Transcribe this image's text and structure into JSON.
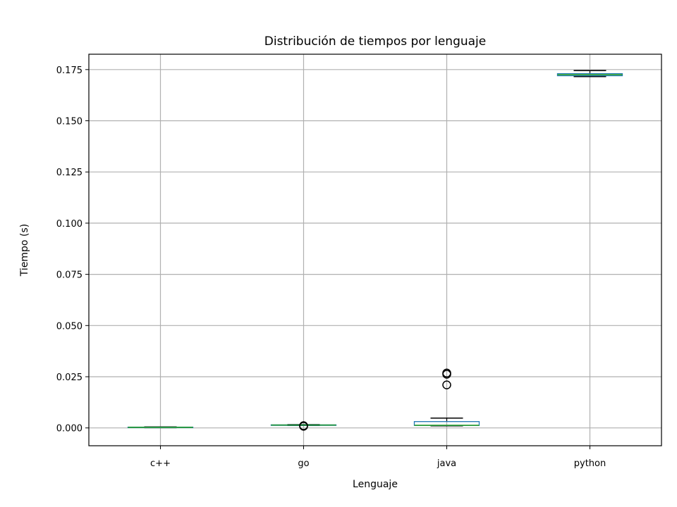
{
  "chart_data": {
    "type": "box",
    "title": "Distribución de tiempos por lenguaje",
    "xlabel": "Lenguaje",
    "ylabel": "Tiempo (s)",
    "ylim": [
      -0.0087,
      0.1825
    ],
    "yticks": [
      "0.000",
      "0.025",
      "0.050",
      "0.075",
      "0.100",
      "0.125",
      "0.150",
      "0.175"
    ],
    "ytick_values": [
      0,
      0.025,
      0.05,
      0.075,
      0.1,
      0.125,
      0.15,
      0.175
    ],
    "grid": true,
    "categories": [
      "c++",
      "go",
      "java",
      "python"
    ],
    "boxes": [
      {
        "category": "c++",
        "whisker_low": 0.0001,
        "q1": 0.0002,
        "median": 0.0003,
        "q3": 0.0004,
        "whisker_high": 0.0005,
        "outliers": []
      },
      {
        "category": "go",
        "whisker_low": 0.0012,
        "q1": 0.0013,
        "median": 0.0014,
        "q3": 0.0015,
        "whisker_high": 0.0016,
        "outliers": [
          0.0008,
          0.0011
        ]
      },
      {
        "category": "java",
        "whisker_low": 0.001,
        "q1": 0.0012,
        "median": 0.0013,
        "q3": 0.0031,
        "whisker_high": 0.0048,
        "outliers": [
          0.021,
          0.0262,
          0.0268
        ]
      },
      {
        "category": "python",
        "whisker_low": 0.1716,
        "q1": 0.172,
        "median": 0.1725,
        "q3": 0.173,
        "whisker_high": 0.1745,
        "outliers": []
      }
    ],
    "colors": {
      "box": "#1f77b4",
      "median": "#2ca02c",
      "whisker": "#000000",
      "grid": "#b0b0b0"
    }
  }
}
